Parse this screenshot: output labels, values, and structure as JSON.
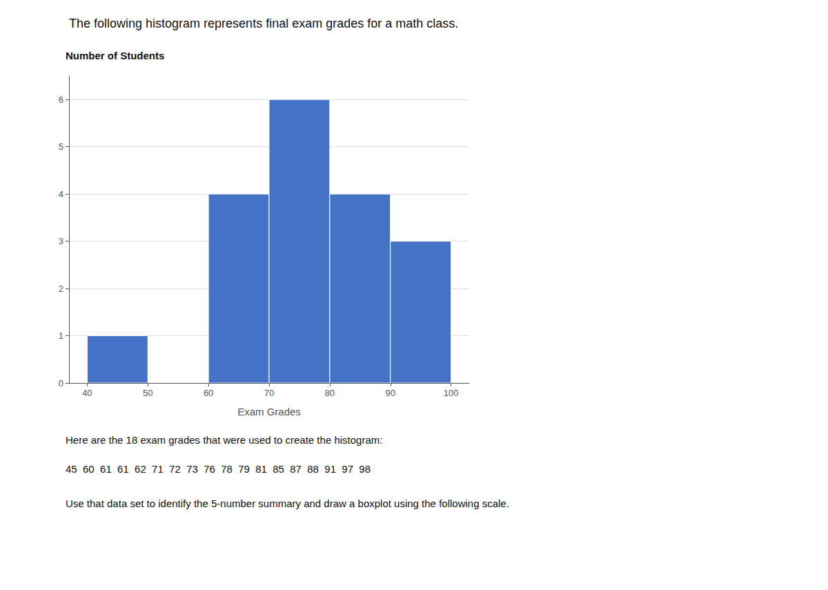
{
  "chart_data": {
    "type": "histogram",
    "title": "The following histogram represents final exam grades for a math class.",
    "ylabel": "Number of Students",
    "xlabel": "Exam Grades",
    "bins": [
      40,
      50,
      60,
      70,
      80,
      90,
      100
    ],
    "values": [
      1,
      0,
      4,
      6,
      4,
      3
    ],
    "color": "#4472C4",
    "xlim": [
      37,
      103
    ],
    "xticks": [
      40,
      50,
      60,
      70,
      80,
      90,
      100
    ],
    "ylim": [
      0,
      6.5
    ],
    "yticks": [
      0,
      1,
      2,
      3,
      4,
      5,
      6
    ],
    "grid": true,
    "annotations": [
      "Here are the 18 exam grades that were used to create the histogram:",
      "45  60  61  61  62  71  72  73  76  78  79  81  85  87  88  91  97  98",
      "Use that data set to identify the 5-number summary and draw a boxplot using the following scale."
    ]
  }
}
